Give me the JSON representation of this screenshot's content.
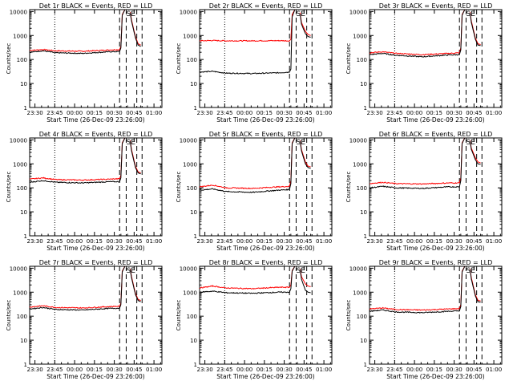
{
  "figure": {
    "xlabel": "Start Time (26-Dec-09 23:26:00)",
    "ylabel": "Counts/sec",
    "x_ticks": [
      "23:30",
      "23:45",
      "00:00",
      "00:15",
      "00:30",
      "00:45",
      "01:00"
    ],
    "y_ticks": [
      "1",
      "10",
      "100",
      "1000",
      "10000"
    ],
    "colors": {
      "events": "#000000",
      "lld": "#ff0000"
    }
  },
  "chart_data": [
    {
      "type": "line",
      "title": "Det 1r BLACK = Events, RED = LLD",
      "xlim": [
        "23:26",
        "01:06"
      ],
      "ylim": [
        1,
        12000
      ],
      "y_scale": "log",
      "events_before_gap": [
        [
          0,
          200
        ],
        [
          10,
          230
        ],
        [
          20,
          190
        ],
        [
          40,
          180
        ],
        [
          60,
          210
        ],
        [
          68,
          215
        ],
        [
          69,
          300
        ],
        [
          70,
          7000
        ],
        [
          72,
          12000
        ]
      ],
      "lld_before_gap": [
        [
          0,
          240
        ],
        [
          10,
          260
        ],
        [
          20,
          230
        ],
        [
          40,
          220
        ],
        [
          60,
          250
        ],
        [
          68,
          260
        ],
        [
          69,
          350
        ],
        [
          70,
          7500
        ],
        [
          72,
          12000
        ]
      ],
      "events_after_gap": [
        [
          76,
          9000
        ],
        [
          77,
          4000
        ],
        [
          80,
          800
        ],
        [
          82,
          400
        ],
        [
          84,
          350
        ]
      ],
      "lld_after_gap": [
        [
          76,
          9500
        ],
        [
          77,
          4500
        ],
        [
          80,
          900
        ],
        [
          82,
          450
        ],
        [
          84,
          400
        ]
      ],
      "annotation": "SE"
    },
    {
      "type": "line",
      "title": "Det 2r BLACK = Events, RED = LLD",
      "xlim": [
        "23:26",
        "01:06"
      ],
      "ylim": [
        1,
        12000
      ],
      "y_scale": "log",
      "events_before_gap": [
        [
          0,
          30
        ],
        [
          10,
          32
        ],
        [
          20,
          27
        ],
        [
          40,
          26
        ],
        [
          60,
          28
        ],
        [
          68,
          30
        ],
        [
          69,
          40
        ],
        [
          70,
          6000
        ],
        [
          72,
          12000
        ]
      ],
      "lld_before_gap": [
        [
          0,
          600
        ],
        [
          10,
          620
        ],
        [
          20,
          600
        ],
        [
          40,
          600
        ],
        [
          60,
          610
        ],
        [
          68,
          600
        ],
        [
          69,
          700
        ],
        [
          70,
          7500
        ],
        [
          72,
          12000
        ]
      ],
      "events_after_gap": [
        [
          76,
          8000
        ],
        [
          77,
          3000
        ],
        [
          80,
          1200
        ],
        [
          82,
          900
        ],
        [
          84,
          850
        ]
      ],
      "lld_after_gap": [
        [
          76,
          9000
        ],
        [
          77,
          3500
        ],
        [
          80,
          1500
        ],
        [
          82,
          1100
        ],
        [
          84,
          1000
        ]
      ],
      "annotation": "SE"
    },
    {
      "type": "line",
      "title": "Det 3r BLACK = Events, RED = LLD",
      "xlim": [
        "23:26",
        "01:06"
      ],
      "ylim": [
        1,
        12000
      ],
      "y_scale": "log",
      "events_before_gap": [
        [
          0,
          160
        ],
        [
          10,
          180
        ],
        [
          20,
          150
        ],
        [
          40,
          130
        ],
        [
          60,
          155
        ],
        [
          68,
          160
        ],
        [
          69,
          250
        ],
        [
          70,
          7000
        ],
        [
          72,
          12000
        ]
      ],
      "lld_before_gap": [
        [
          0,
          190
        ],
        [
          10,
          210
        ],
        [
          20,
          180
        ],
        [
          40,
          160
        ],
        [
          60,
          180
        ],
        [
          68,
          190
        ],
        [
          69,
          300
        ],
        [
          70,
          7500
        ],
        [
          72,
          12000
        ]
      ],
      "events_after_gap": [
        [
          76,
          9000
        ],
        [
          77,
          3500
        ],
        [
          80,
          700
        ],
        [
          82,
          400
        ],
        [
          84,
          380
        ]
      ],
      "lld_after_gap": [
        [
          76,
          9500
        ],
        [
          77,
          4000
        ],
        [
          80,
          800
        ],
        [
          82,
          450
        ],
        [
          84,
          420
        ]
      ],
      "annotation": "SE"
    },
    {
      "type": "line",
      "title": "Det 4r BLACK = Events, RED = LLD",
      "xlim": [
        "23:26",
        "01:06"
      ],
      "ylim": [
        1,
        12000
      ],
      "y_scale": "log",
      "events_before_gap": [
        [
          0,
          170
        ],
        [
          10,
          200
        ],
        [
          20,
          170
        ],
        [
          40,
          160
        ],
        [
          60,
          180
        ],
        [
          68,
          180
        ],
        [
          69,
          260
        ],
        [
          70,
          7000
        ],
        [
          72,
          12000
        ]
      ],
      "lld_before_gap": [
        [
          0,
          230
        ],
        [
          10,
          260
        ],
        [
          20,
          220
        ],
        [
          40,
          210
        ],
        [
          60,
          230
        ],
        [
          68,
          240
        ],
        [
          69,
          330
        ],
        [
          70,
          7500
        ],
        [
          72,
          12000
        ]
      ],
      "events_after_gap": [
        [
          76,
          9000
        ],
        [
          77,
          3500
        ],
        [
          80,
          700
        ],
        [
          82,
          420
        ],
        [
          84,
          380
        ]
      ],
      "lld_after_gap": [
        [
          76,
          9500
        ],
        [
          77,
          4000
        ],
        [
          80,
          800
        ],
        [
          82,
          460
        ],
        [
          84,
          420
        ]
      ],
      "annotation": "SE"
    },
    {
      "type": "line",
      "title": "Det 5r BLACK = Events, RED = LLD",
      "xlim": [
        "23:26",
        "01:06"
      ],
      "ylim": [
        1,
        12000
      ],
      "y_scale": "log",
      "events_before_gap": [
        [
          0,
          80
        ],
        [
          10,
          90
        ],
        [
          20,
          70
        ],
        [
          40,
          65
        ],
        [
          60,
          80
        ],
        [
          68,
          85
        ],
        [
          69,
          150
        ],
        [
          70,
          7000
        ],
        [
          72,
          12000
        ]
      ],
      "lld_before_gap": [
        [
          0,
          110
        ],
        [
          10,
          130
        ],
        [
          20,
          100
        ],
        [
          40,
          95
        ],
        [
          60,
          110
        ],
        [
          68,
          115
        ],
        [
          69,
          200
        ],
        [
          70,
          7500
        ],
        [
          72,
          12000
        ]
      ],
      "events_after_gap": [
        [
          76,
          9000
        ],
        [
          77,
          3500
        ],
        [
          80,
          1000
        ],
        [
          82,
          700
        ],
        [
          84,
          650
        ]
      ],
      "lld_after_gap": [
        [
          76,
          9500
        ],
        [
          77,
          4000
        ],
        [
          80,
          1200
        ],
        [
          82,
          800
        ],
        [
          84,
          750
        ]
      ],
      "annotation": "SE"
    },
    {
      "type": "line",
      "title": "Det 6r BLACK = Events, RED = LLD",
      "xlim": [
        "23:26",
        "01:06"
      ],
      "ylim": [
        1,
        12000
      ],
      "y_scale": "log",
      "events_before_gap": [
        [
          0,
          100
        ],
        [
          10,
          115
        ],
        [
          20,
          100
        ],
        [
          40,
          95
        ],
        [
          60,
          110
        ],
        [
          68,
          110
        ],
        [
          69,
          200
        ],
        [
          70,
          7000
        ],
        [
          72,
          12000
        ]
      ],
      "lld_before_gap": [
        [
          0,
          150
        ],
        [
          10,
          170
        ],
        [
          20,
          150
        ],
        [
          40,
          145
        ],
        [
          60,
          160
        ],
        [
          68,
          160
        ],
        [
          69,
          260
        ],
        [
          70,
          7500
        ],
        [
          72,
          12000
        ]
      ],
      "events_after_gap": [
        [
          76,
          9000
        ],
        [
          77,
          4000
        ],
        [
          80,
          1500
        ],
        [
          82,
          1000
        ],
        [
          84,
          950
        ]
      ],
      "lld_after_gap": [
        [
          76,
          9500
        ],
        [
          77,
          4500
        ],
        [
          80,
          1800
        ],
        [
          82,
          1200
        ],
        [
          84,
          1100
        ]
      ],
      "annotation": "SE"
    },
    {
      "type": "line",
      "title": "Det 7r BLACK = Events, RED = LLD",
      "xlim": [
        "23:26",
        "01:06"
      ],
      "ylim": [
        1,
        12000
      ],
      "y_scale": "log",
      "events_before_gap": [
        [
          0,
          200
        ],
        [
          10,
          230
        ],
        [
          20,
          190
        ],
        [
          40,
          180
        ],
        [
          60,
          210
        ],
        [
          68,
          215
        ],
        [
          69,
          300
        ],
        [
          70,
          7000
        ],
        [
          72,
          12000
        ]
      ],
      "lld_before_gap": [
        [
          0,
          240
        ],
        [
          10,
          270
        ],
        [
          20,
          230
        ],
        [
          40,
          220
        ],
        [
          60,
          250
        ],
        [
          68,
          260
        ],
        [
          69,
          350
        ],
        [
          70,
          7500
        ],
        [
          72,
          12000
        ]
      ],
      "events_after_gap": [
        [
          76,
          9000
        ],
        [
          77,
          4000
        ],
        [
          80,
          800
        ],
        [
          82,
          450
        ],
        [
          84,
          400
        ]
      ],
      "lld_after_gap": [
        [
          76,
          9500
        ],
        [
          77,
          4500
        ],
        [
          80,
          900
        ],
        [
          82,
          500
        ],
        [
          84,
          450
        ]
      ],
      "annotation": "SE"
    },
    {
      "type": "line",
      "title": "Det 8r BLACK = Events, RED = LLD",
      "xlim": [
        "23:26",
        "01:06"
      ],
      "ylim": [
        1,
        12000
      ],
      "y_scale": "log",
      "events_before_gap": [
        [
          0,
          1000
        ],
        [
          10,
          1100
        ],
        [
          20,
          950
        ],
        [
          40,
          900
        ],
        [
          60,
          1000
        ],
        [
          68,
          1000
        ],
        [
          69,
          1400
        ],
        [
          70,
          7500
        ],
        [
          72,
          12000
        ]
      ],
      "lld_before_gap": [
        [
          0,
          1500
        ],
        [
          10,
          1800
        ],
        [
          20,
          1500
        ],
        [
          40,
          1400
        ],
        [
          60,
          1600
        ],
        [
          68,
          1600
        ],
        [
          69,
          2000
        ],
        [
          70,
          8000
        ],
        [
          72,
          12000
        ]
      ],
      "events_after_gap": [
        [
          76,
          9000
        ],
        [
          77,
          3500
        ],
        [
          80,
          1200
        ],
        [
          82,
          1000
        ],
        [
          84,
          950
        ]
      ],
      "lld_after_gap": [
        [
          76,
          9500
        ],
        [
          77,
          4500
        ],
        [
          80,
          2200
        ],
        [
          82,
          1800
        ],
        [
          84,
          1700
        ]
      ],
      "annotation": "SE"
    },
    {
      "type": "line",
      "title": "Det 9r BLACK = Events, RED = LLD",
      "xlim": [
        "23:26",
        "01:06"
      ],
      "ylim": [
        1,
        12000
      ],
      "y_scale": "log",
      "events_before_gap": [
        [
          0,
          160
        ],
        [
          10,
          180
        ],
        [
          20,
          150
        ],
        [
          40,
          140
        ],
        [
          60,
          160
        ],
        [
          68,
          165
        ],
        [
          69,
          250
        ],
        [
          70,
          7000
        ],
        [
          72,
          12000
        ]
      ],
      "lld_before_gap": [
        [
          0,
          200
        ],
        [
          10,
          220
        ],
        [
          20,
          190
        ],
        [
          40,
          180
        ],
        [
          60,
          200
        ],
        [
          68,
          205
        ],
        [
          69,
          300
        ],
        [
          70,
          7500
        ],
        [
          72,
          12000
        ]
      ],
      "events_after_gap": [
        [
          76,
          9000
        ],
        [
          77,
          3500
        ],
        [
          80,
          700
        ],
        [
          82,
          400
        ],
        [
          84,
          380
        ]
      ],
      "lld_after_gap": [
        [
          76,
          9500
        ],
        [
          77,
          4000
        ],
        [
          80,
          800
        ],
        [
          82,
          460
        ],
        [
          84,
          430
        ]
      ],
      "annotation": "SE"
    }
  ]
}
